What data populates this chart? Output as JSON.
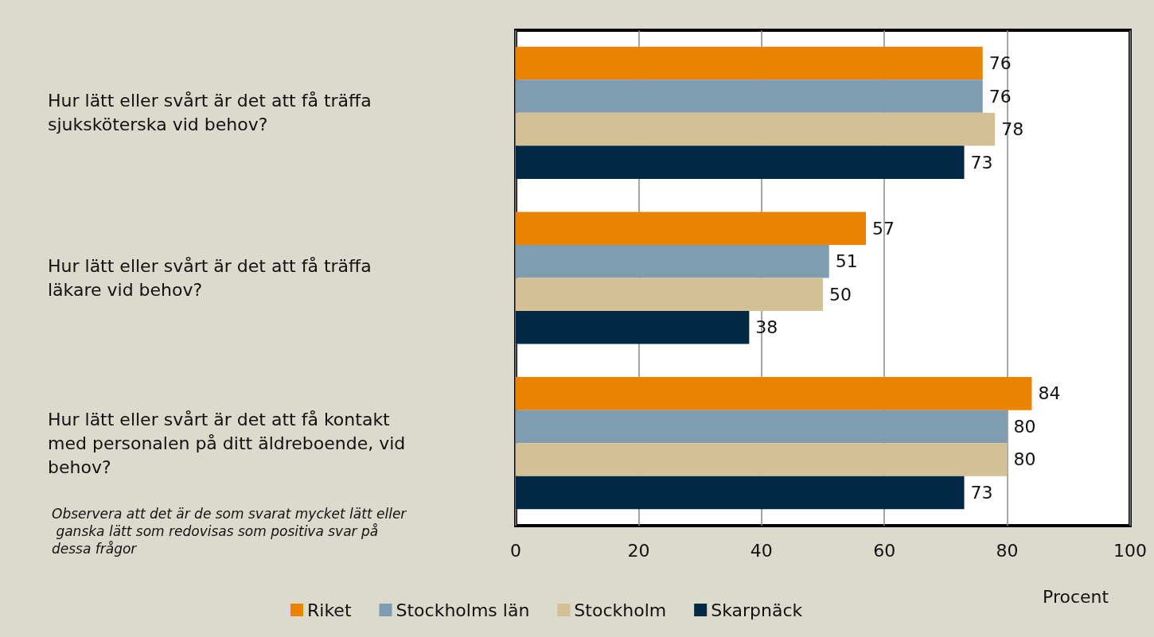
{
  "chart_data": {
    "type": "bar",
    "orientation": "horizontal",
    "categories": [
      "Hur lätt eller svårt är det att få träffa sjuksköterska vid behov?",
      "Hur lätt eller svårt är det att få träffa läkare vid behov?",
      "Hur lätt eller svårt är det att få kontakt med personalen på ditt äldreboende, vid behov?"
    ],
    "series": [
      {
        "name": "Riket",
        "color": "#e98300",
        "values": [
          76,
          57,
          84
        ]
      },
      {
        "name": "Stockholms län",
        "color": "#7f9db0",
        "values": [
          76,
          51,
          80
        ]
      },
      {
        "name": "Stockholm",
        "color": "#d4c095",
        "values": [
          78,
          50,
          80
        ]
      },
      {
        "name": "Skarpnäck",
        "color": "#002a44",
        "values": [
          73,
          38,
          73
        ]
      }
    ],
    "xlabel": "Procent",
    "xlim": [
      0,
      100
    ],
    "xticks": [
      0,
      20,
      40,
      60,
      80,
      100
    ],
    "grid": "x",
    "legend": "bottom",
    "data_labels": true,
    "annotations": [
      "Observera att det är de som svarat mycket lätt eller ganska lätt som redovisas som positiva svar på dessa frågor"
    ]
  }
}
